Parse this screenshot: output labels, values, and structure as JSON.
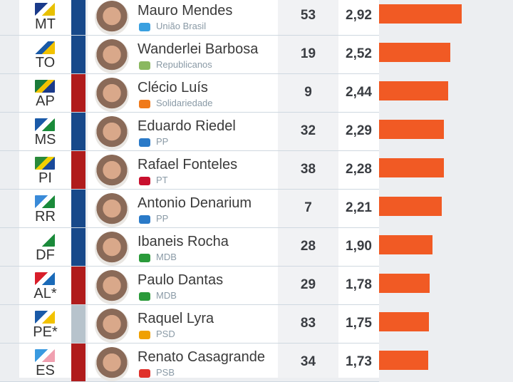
{
  "colors": {
    "bar": "#f15a24",
    "blue": "#18498a",
    "red": "#b01c1c",
    "gray": "#b7c3cc"
  },
  "rows": [
    {
      "state": "MT",
      "name": "Mauro Mendes",
      "party": "União Brasil",
      "party_color": "#3aa0e0",
      "num": "53",
      "value": "2,92",
      "v": 2.92,
      "side": "blue",
      "flag": [
        "#1a3a8a",
        "#fff",
        "#e8c000"
      ]
    },
    {
      "state": "TO",
      "name": "Wanderlei Barbosa",
      "party": "Republicanos",
      "party_color": "#8ab860",
      "num": "19",
      "value": "2,52",
      "v": 2.52,
      "side": "blue",
      "flag": [
        "#fff",
        "#1a5aa8",
        "#f2c200"
      ]
    },
    {
      "state": "AP",
      "name": "Clécio Luís",
      "party": "Solidariedade",
      "party_color": "#f07a1a",
      "num": "9",
      "value": "2,44",
      "v": 2.44,
      "side": "red",
      "flag": [
        "#1a7a3a",
        "#f2c200",
        "#1a3a8a"
      ]
    },
    {
      "state": "MS",
      "name": "Eduardo Riedel",
      "party": "PP",
      "party_color": "#2a7ac8",
      "num": "32",
      "value": "2,29",
      "v": 2.29,
      "side": "blue",
      "flag": [
        "#1a5aa8",
        "#fff",
        "#1a8a3a"
      ]
    },
    {
      "state": "PI",
      "name": "Rafael Fonteles",
      "party": "PT",
      "party_color": "#c8102e",
      "num": "38",
      "value": "2,28",
      "v": 2.28,
      "side": "red",
      "flag": [
        "#2a8a3a",
        "#f2d000",
        "#1a4a9a"
      ]
    },
    {
      "state": "RR",
      "name": "Antonio Denarium",
      "party": "PP",
      "party_color": "#2a7ac8",
      "num": "7",
      "value": "2,21",
      "v": 2.21,
      "side": "blue",
      "flag": [
        "#3a8ad8",
        "#fff",
        "#1a8a3a"
      ]
    },
    {
      "state": "DF",
      "name": "Ibaneis Rocha",
      "party": "MDB",
      "party_color": "#2a9a3a",
      "num": "28",
      "value": "1,90",
      "v": 1.9,
      "side": "blue",
      "flag": [
        "#fff",
        "#fff",
        "#1a8a3a"
      ]
    },
    {
      "state": "AL*",
      "name": "Paulo Dantas",
      "party": "MDB",
      "party_color": "#2a9a3a",
      "num": "29",
      "value": "1,78",
      "v": 1.78,
      "side": "red",
      "flag": [
        "#d81e2a",
        "#fff",
        "#1a6ab8"
      ]
    },
    {
      "state": "PE*",
      "name": "Raquel Lyra",
      "party": "PSD",
      "party_color": "#f0a000",
      "num": "83",
      "value": "1,75",
      "v": 1.75,
      "side": "gray",
      "flag": [
        "#1a5aa8",
        "#fff",
        "#f2c200"
      ]
    },
    {
      "state": "ES",
      "name": "Renato Casagrande",
      "party": "PSB",
      "party_color": "#e0302a",
      "num": "34",
      "value": "1,73",
      "v": 1.73,
      "side": "red",
      "flag": [
        "#3a9ae0",
        "#fff",
        "#f0a0b0"
      ]
    }
  ]
}
